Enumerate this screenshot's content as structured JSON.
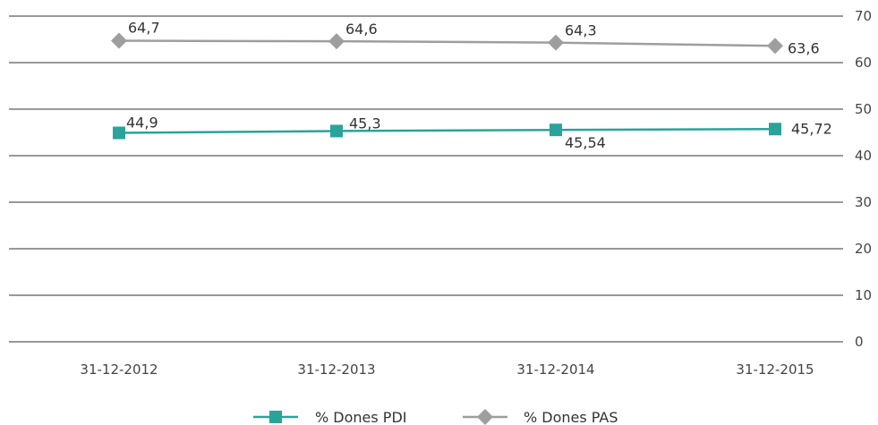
{
  "chart_data": {
    "type": "line",
    "categories": [
      "31-12-2012",
      "31-12-2013",
      "31-12-2014",
      "31-12-2015"
    ],
    "ylim": [
      0,
      70
    ],
    "yticks": [
      "0",
      "10",
      "20",
      "30",
      "40",
      "50",
      "60",
      "70"
    ],
    "grid": true,
    "y_axis_side": "right",
    "legend_position": "bottom",
    "series": [
      {
        "name": "% Dones PDI",
        "values": [
          44.9,
          45.3,
          45.54,
          45.72
        ],
        "labels": [
          "44,9",
          "45,3",
          "45,54",
          "45,72"
        ],
        "color": "#2aa39a",
        "marker": "square"
      },
      {
        "name": "% Dones PAS",
        "values": [
          64.7,
          64.6,
          64.3,
          63.6
        ],
        "labels": [
          "64,7",
          "64,6",
          "64,3",
          "63,6"
        ],
        "color": "#9e9e9e",
        "marker": "diamond"
      }
    ]
  }
}
